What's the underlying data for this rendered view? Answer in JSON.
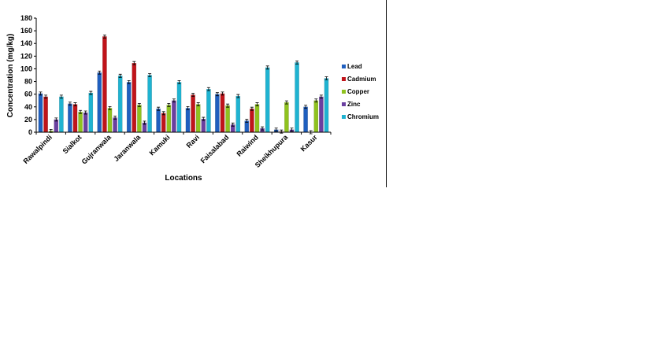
{
  "chart_data": {
    "type": "bar",
    "title": "",
    "xlabel": "Locations",
    "ylabel": "Concentration (mg/kg)",
    "ylim": [
      0,
      180
    ],
    "yticks": [
      0,
      20,
      40,
      60,
      80,
      100,
      120,
      140,
      160,
      180
    ],
    "grid": false,
    "legend_position": "right",
    "error_bars": true,
    "categories": [
      "Rawalpindi",
      "Sialkot",
      "Gujranwala",
      "Jaranwala",
      "Kamuki",
      "Ravi",
      "Faisalabad",
      "Raiwind",
      "Sheikhupura",
      "Kasur"
    ],
    "series": [
      {
        "name": "Lead",
        "color": "#1f5fbf",
        "values": [
          61,
          45,
          94,
          79,
          37,
          38,
          60,
          18,
          4,
          40
        ]
      },
      {
        "name": "Cadmium",
        "color": "#c0141a",
        "values": [
          56,
          44,
          151,
          109,
          30,
          59,
          61,
          37,
          1,
          0
        ]
      },
      {
        "name": "Copper",
        "color": "#8fc21f",
        "values": [
          2,
          32,
          38,
          43,
          43,
          44,
          42,
          44,
          47,
          50
        ]
      },
      {
        "name": "Zinc",
        "color": "#6a3fa0",
        "values": [
          20,
          31,
          23,
          15,
          50,
          21,
          12,
          6,
          4,
          56
        ]
      },
      {
        "name": "Chromium",
        "color": "#1fb3d1",
        "values": [
          56,
          62,
          89,
          90,
          79,
          68,
          57,
          102,
          110,
          85
        ]
      }
    ]
  }
}
